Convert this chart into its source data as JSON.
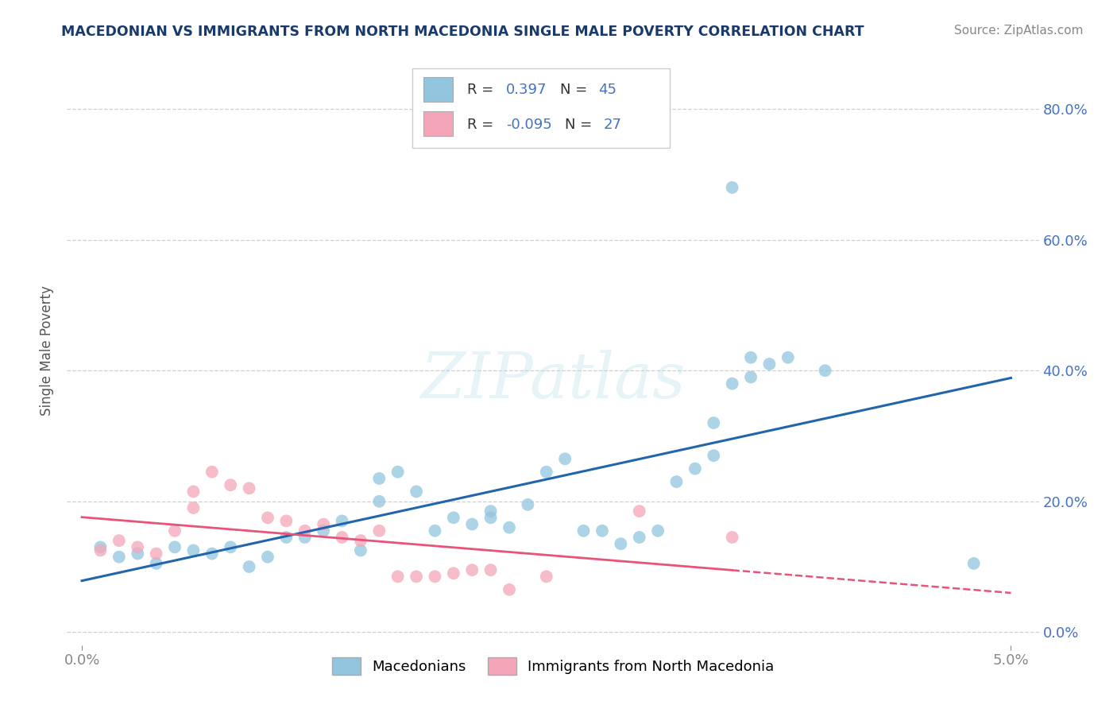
{
  "title": "MACEDONIAN VS IMMIGRANTS FROM NORTH MACEDONIA SINGLE MALE POVERTY CORRELATION CHART",
  "source": "Source: ZipAtlas.com",
  "ylabel": "Single Male Poverty",
  "legend_label1": "Macedonians",
  "legend_label2": "Immigrants from North Macedonia",
  "r1": "0.397",
  "n1": "45",
  "r2": "-0.095",
  "n2": "27",
  "blue_color": "#92c5de",
  "pink_color": "#f4a6b8",
  "blue_line_color": "#2166ac",
  "pink_line_color": "#e8537a",
  "blue_scatter": [
    [
      0.001,
      0.13
    ],
    [
      0.002,
      0.115
    ],
    [
      0.003,
      0.12
    ],
    [
      0.004,
      0.105
    ],
    [
      0.005,
      0.13
    ],
    [
      0.006,
      0.125
    ],
    [
      0.007,
      0.12
    ],
    [
      0.008,
      0.13
    ],
    [
      0.009,
      0.1
    ],
    [
      0.01,
      0.115
    ],
    [
      0.011,
      0.145
    ],
    [
      0.012,
      0.145
    ],
    [
      0.013,
      0.155
    ],
    [
      0.014,
      0.17
    ],
    [
      0.015,
      0.125
    ],
    [
      0.016,
      0.2
    ],
    [
      0.016,
      0.235
    ],
    [
      0.017,
      0.245
    ],
    [
      0.018,
      0.215
    ],
    [
      0.019,
      0.155
    ],
    [
      0.02,
      0.175
    ],
    [
      0.021,
      0.165
    ],
    [
      0.022,
      0.185
    ],
    [
      0.022,
      0.175
    ],
    [
      0.023,
      0.16
    ],
    [
      0.024,
      0.195
    ],
    [
      0.025,
      0.245
    ],
    [
      0.026,
      0.265
    ],
    [
      0.027,
      0.155
    ],
    [
      0.028,
      0.155
    ],
    [
      0.029,
      0.135
    ],
    [
      0.03,
      0.145
    ],
    [
      0.031,
      0.155
    ],
    [
      0.032,
      0.23
    ],
    [
      0.033,
      0.25
    ],
    [
      0.034,
      0.27
    ],
    [
      0.034,
      0.32
    ],
    [
      0.035,
      0.38
    ],
    [
      0.036,
      0.39
    ],
    [
      0.036,
      0.42
    ],
    [
      0.037,
      0.41
    ],
    [
      0.038,
      0.42
    ],
    [
      0.04,
      0.4
    ],
    [
      0.035,
      0.68
    ],
    [
      0.048,
      0.105
    ]
  ],
  "pink_scatter": [
    [
      0.001,
      0.125
    ],
    [
      0.002,
      0.14
    ],
    [
      0.003,
      0.13
    ],
    [
      0.004,
      0.12
    ],
    [
      0.005,
      0.155
    ],
    [
      0.006,
      0.19
    ],
    [
      0.006,
      0.215
    ],
    [
      0.007,
      0.245
    ],
    [
      0.008,
      0.225
    ],
    [
      0.009,
      0.22
    ],
    [
      0.01,
      0.175
    ],
    [
      0.011,
      0.17
    ],
    [
      0.012,
      0.155
    ],
    [
      0.013,
      0.165
    ],
    [
      0.014,
      0.145
    ],
    [
      0.015,
      0.14
    ],
    [
      0.016,
      0.155
    ],
    [
      0.017,
      0.085
    ],
    [
      0.018,
      0.085
    ],
    [
      0.019,
      0.085
    ],
    [
      0.02,
      0.09
    ],
    [
      0.021,
      0.095
    ],
    [
      0.022,
      0.095
    ],
    [
      0.023,
      0.065
    ],
    [
      0.025,
      0.085
    ],
    [
      0.03,
      0.185
    ],
    [
      0.035,
      0.145
    ]
  ],
  "xlim": [
    0.0,
    0.051
  ],
  "ylim": [
    0.0,
    0.84
  ],
  "yticks": [
    0.0,
    0.2,
    0.4,
    0.6,
    0.8
  ],
  "yticklabels": [
    "0.0%",
    "20.0%",
    "40.0%",
    "60.0%",
    "80.0%"
  ],
  "xticks": [
    0.0,
    0.05
  ],
  "xticklabels": [
    "0.0%",
    "5.0%"
  ],
  "watermark": "ZIPatlas",
  "title_color": "#1a3a6b",
  "source_color": "#888888",
  "grid_color": "#d0d0d0",
  "text_color_blue": "#4472c4",
  "text_color_dark": "#333333"
}
